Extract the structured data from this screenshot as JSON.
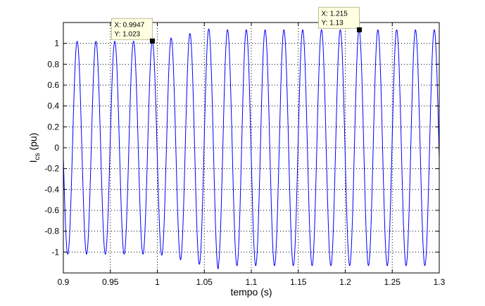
{
  "chart_data": {
    "type": "line",
    "title": "",
    "xlabel": "tempo (s)",
    "ylabel": {
      "main": "I",
      "sub": "cs",
      "unit": " (pu)"
    },
    "xlim": [
      0.9,
      1.3
    ],
    "ylim": [
      -1.2,
      1.2
    ],
    "grid": true,
    "grid_style": "dotted",
    "line_color": "#0000ff",
    "xticks": [
      0.9,
      0.95,
      1.0,
      1.05,
      1.1,
      1.15,
      1.2,
      1.25,
      1.3
    ],
    "xtick_labels": [
      "0.9",
      "0.95",
      "1",
      "1.05",
      "1.1",
      "1.15",
      "1.2",
      "1.25",
      "1.3"
    ],
    "yticks": [
      -1,
      -0.8,
      -0.6,
      -0.4,
      -0.2,
      0,
      0.2,
      0.4,
      0.6,
      0.8,
      1
    ],
    "ytick_labels": [
      "-1",
      "-0.8",
      "-0.6",
      "-0.4",
      "-0.2",
      "0",
      "0.2",
      "0.4",
      "0.6",
      "0.8",
      "1"
    ],
    "series": [
      {
        "frequency_hz": 50,
        "amplitude_segments": [
          {
            "from": 0.9,
            "to": 1.0,
            "amplitude": 1.02
          },
          {
            "from": 1.0,
            "to": 1.065,
            "amplitude_start": 1.02,
            "amplitude_end": 1.16
          },
          {
            "from": 1.065,
            "to": 1.3,
            "amplitude": 1.13
          }
        ]
      }
    ],
    "datatips": [
      {
        "x": 0.9947,
        "y": 1.023,
        "label_x": "X: 0.9947",
        "label_y": "Y: 1.023"
      },
      {
        "x": 1.215,
        "y": 1.13,
        "label_x": "X: 1.215",
        "label_y": "Y: 1.13"
      }
    ]
  }
}
